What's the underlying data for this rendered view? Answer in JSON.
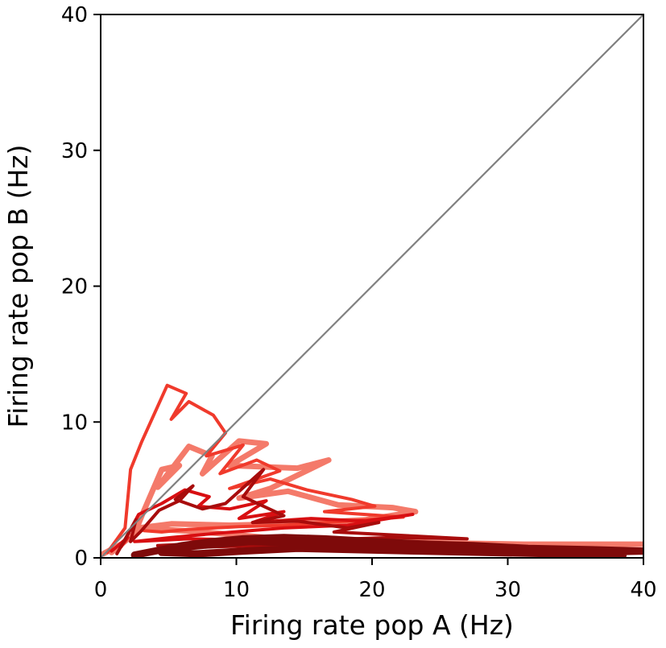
{
  "chart_data": {
    "type": "line",
    "title": "",
    "xlabel": "Firing rate pop A (Hz)",
    "ylabel": "Firing rate pop B (Hz)",
    "xlim": [
      0,
      40
    ],
    "ylim": [
      0,
      40
    ],
    "xticks": [
      0,
      10,
      20,
      30,
      40
    ],
    "yticks": [
      0,
      10,
      20,
      30,
      40
    ],
    "xtick_labels": [
      "0",
      "10",
      "20",
      "30",
      "40"
    ],
    "ytick_labels": [
      "0",
      "10",
      "20",
      "30",
      "40"
    ],
    "grid": false,
    "legend": "none",
    "reference_line": {
      "x": [
        0,
        40
      ],
      "y": [
        0,
        40
      ],
      "color": "#808080"
    },
    "series": [
      {
        "color": "#f47a6a",
        "x": [
          0.2,
          1.5,
          0.8,
          2.5,
          3.2,
          4.5,
          5.8,
          4.2,
          6.5,
          8.2,
          7.5,
          10.2,
          12.2,
          9.5,
          14.5,
          16.8,
          12.5,
          10.2,
          13.8,
          17.5,
          21.5,
          23.2,
          19.5,
          14.2,
          9.5,
          5.2,
          2.8,
          7.5,
          12.2,
          18.5,
          24.5,
          31.2,
          37.5,
          40.0
        ],
        "y": [
          0.3,
          1.0,
          0.4,
          1.8,
          3.5,
          6.5,
          6.8,
          5.2,
          8.2,
          7.5,
          6.2,
          8.6,
          8.4,
          6.8,
          6.6,
          7.2,
          5.1,
          4.4,
          4.9,
          3.9,
          3.7,
          3.4,
          2.8,
          2.5,
          2.4,
          2.5,
          2.2,
          1.9,
          1.5,
          1.3,
          1.1,
          1.0,
          1.0,
          1.0
        ]
      },
      {
        "color": "#f03a2c",
        "x": [
          0.5,
          1.8,
          2.2,
          3.0,
          4.9,
          6.3,
          5.2,
          6.5,
          8.3,
          9.2,
          7.8,
          10.5,
          8.8,
          11.5,
          13.2,
          9.5,
          12.5,
          15.2,
          18.5,
          20.2,
          16.5,
          22.3,
          18.2,
          13.5,
          10.2,
          6.5,
          4.5,
          3.2
        ],
        "y": [
          0.4,
          2.2,
          6.5,
          8.5,
          12.7,
          12.1,
          10.2,
          11.5,
          10.5,
          9.2,
          7.5,
          8.3,
          6.2,
          7.2,
          6.4,
          5.1,
          5.8,
          5.0,
          4.3,
          3.8,
          3.4,
          3.0,
          2.7,
          2.4,
          2.3,
          2.1,
          1.9,
          2.0
        ]
      },
      {
        "color": "#d80f12",
        "x": [
          0.8,
          2.0,
          1.5,
          2.8,
          4.5,
          6.2,
          8.0,
          7.2,
          9.5,
          12.2,
          10.2,
          13.5,
          11.2,
          15.5,
          19.5,
          23.0,
          18.2,
          13.5,
          8.5,
          5.2,
          2.5,
          6.5,
          12.5,
          19.5,
          26.8,
          33.5,
          40.0
        ],
        "y": [
          0.5,
          1.5,
          0.8,
          3.2,
          4.0,
          5.0,
          4.5,
          3.8,
          3.6,
          4.2,
          2.9,
          3.4,
          2.6,
          2.9,
          2.7,
          3.2,
          2.4,
          2.2,
          1.8,
          1.5,
          1.2,
          1.4,
          1.3,
          1.0,
          0.9,
          0.7,
          0.6
        ]
      },
      {
        "color": "#a80c0c",
        "x": [
          1.2,
          2.6,
          2.2,
          3.0,
          4.3,
          5.8,
          6.8,
          5.5,
          7.5,
          9.2,
          12.0,
          10.5,
          13.5,
          11.2,
          14.5,
          18.2,
          20.5,
          17.2,
          23.2,
          27.0,
          21.5,
          15.2,
          9.5,
          6.2,
          4.2,
          7.5,
          12.2,
          16.5,
          22.5,
          30.5,
          36.5,
          40.0
        ],
        "y": [
          0.3,
          2.8,
          1.2,
          2.0,
          3.5,
          4.2,
          5.3,
          4.3,
          3.6,
          4.0,
          6.5,
          4.5,
          3.1,
          2.6,
          2.7,
          2.2,
          2.6,
          1.9,
          1.6,
          1.4,
          1.5,
          1.3,
          1.2,
          1.0,
          0.9,
          0.8,
          0.9,
          0.8,
          0.7,
          0.6,
          0.5,
          0.5
        ]
      },
      {
        "color": "#7e0a0a",
        "x": [
          2.5,
          4.5,
          6.0,
          8.2,
          10.5,
          13.5,
          16.5,
          20.0,
          24.2,
          27.5,
          31.5,
          36.2,
          40.0,
          35.5,
          30.2,
          25.5,
          21.2,
          17.5,
          14.2,
          11.0,
          8.5,
          6.2,
          4.5,
          7.2,
          10.5,
          14.5,
          18.8,
          23.5,
          28.2,
          33.5,
          38.5
        ],
        "y": [
          0.2,
          0.6,
          0.9,
          1.2,
          1.4,
          1.5,
          1.4,
          1.2,
          1.0,
          0.9,
          0.7,
          0.6,
          0.5,
          0.4,
          0.5,
          0.6,
          0.8,
          0.9,
          1.1,
          1.2,
          1.0,
          0.8,
          0.4,
          0.3,
          0.5,
          0.7,
          0.6,
          0.5,
          0.4,
          0.3,
          0.2
        ]
      }
    ]
  }
}
